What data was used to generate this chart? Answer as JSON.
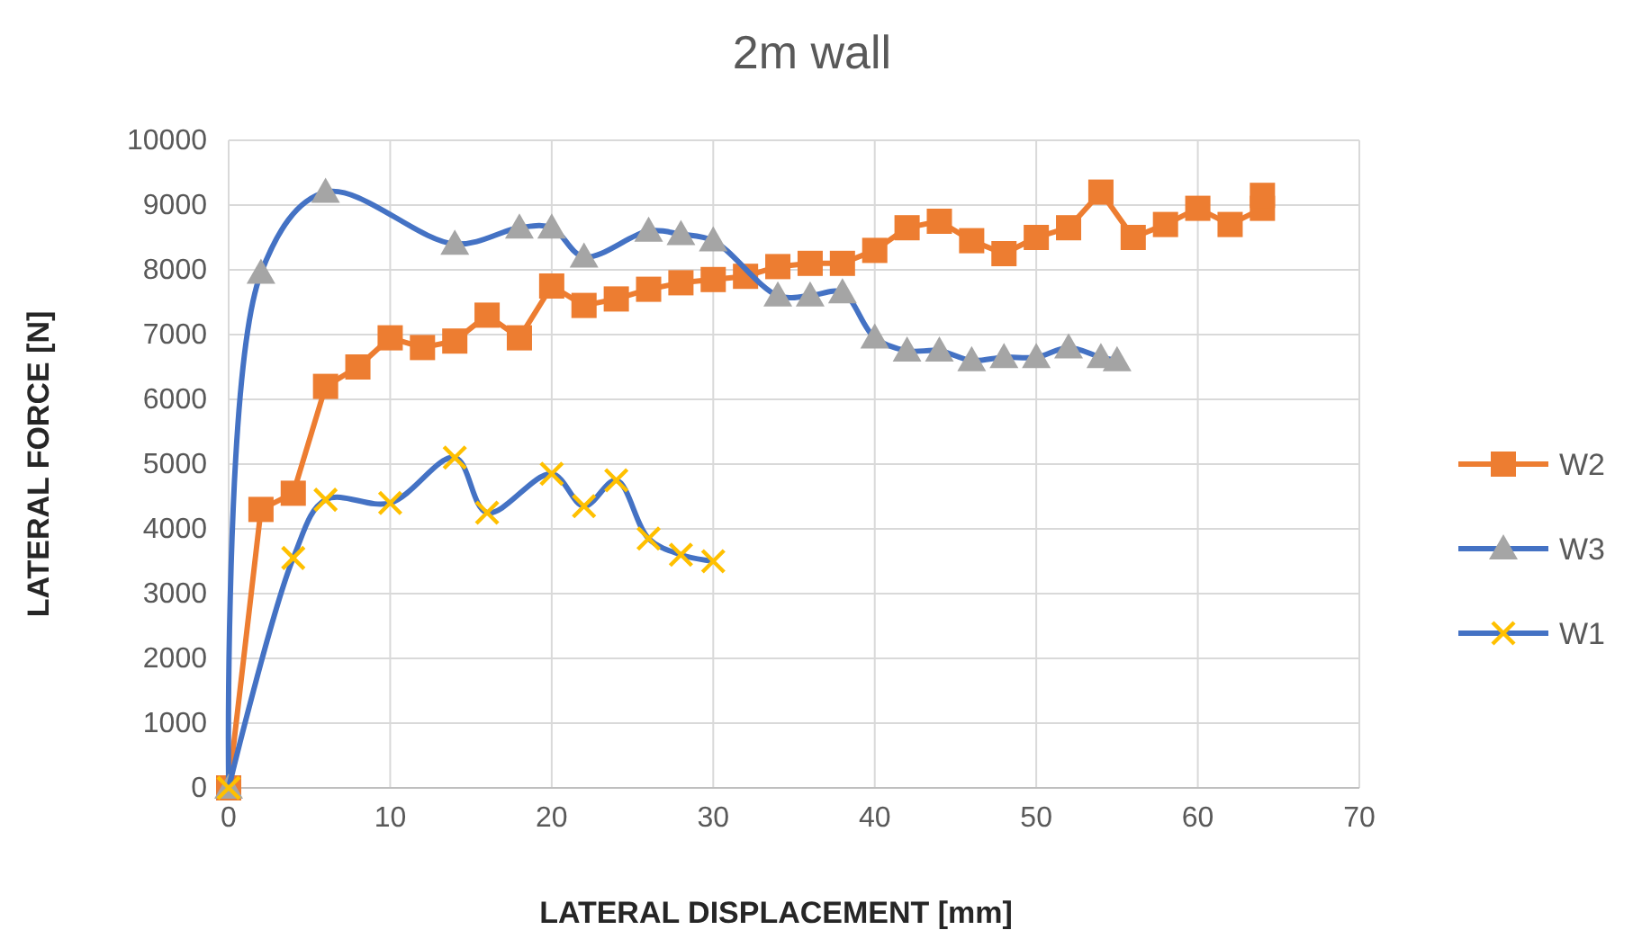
{
  "chart_data": {
    "type": "line",
    "title": "2m wall",
    "xlabel": "LATERAL DISPLACEMENT  [mm]",
    "ylabel": "LATERAL FORCE [N]",
    "xlim": [
      0,
      70
    ],
    "xticks": [
      0,
      10,
      20,
      30,
      40,
      50,
      60,
      70
    ],
    "ylim": [
      0,
      10000
    ],
    "yticks": [
      0,
      1000,
      2000,
      3000,
      4000,
      5000,
      6000,
      7000,
      8000,
      9000,
      10000
    ],
    "grid": true,
    "legend": "right",
    "series": [
      {
        "name": "W2",
        "color": "#ed7d31",
        "marker": "square",
        "x": [
          0,
          2,
          4,
          6,
          8,
          10,
          12,
          14,
          16,
          18,
          20,
          22,
          24,
          26,
          28,
          30,
          32,
          34,
          36,
          38,
          40,
          42,
          44,
          46,
          48,
          50,
          52,
          54,
          56,
          58,
          60,
          62,
          64,
          64
        ],
        "values": [
          0,
          4300,
          4550,
          6200,
          6500,
          6950,
          6800,
          6900,
          7300,
          6950,
          7750,
          7450,
          7550,
          7700,
          7800,
          7850,
          7900,
          8050,
          8100,
          8100,
          8300,
          8650,
          8750,
          8450,
          8250,
          8500,
          8650,
          9200,
          8500,
          8700,
          8950,
          8700,
          8950,
          9150
        ]
      },
      {
        "name": "W3",
        "color": "#4472c4",
        "marker": "triangle",
        "x": [
          0,
          2,
          6,
          14,
          18,
          20,
          22,
          26,
          28,
          30,
          34,
          36,
          38,
          40,
          42,
          44,
          46,
          48,
          50,
          52,
          54,
          55
        ],
        "values": [
          0,
          7950,
          9200,
          8400,
          8650,
          8650,
          8200,
          8600,
          8550,
          8450,
          7600,
          7600,
          7650,
          6950,
          6750,
          6750,
          6600,
          6650,
          6650,
          6800,
          6650,
          6600
        ]
      },
      {
        "name": "W1",
        "color": "#4472c4",
        "marker": "cross",
        "x": [
          0,
          4,
          6,
          10,
          14,
          16,
          20,
          22,
          24,
          26,
          28,
          30
        ],
        "values": [
          0,
          3550,
          4450,
          4400,
          5100,
          4250,
          4850,
          4350,
          4750,
          3850,
          3600,
          3500
        ]
      }
    ]
  }
}
